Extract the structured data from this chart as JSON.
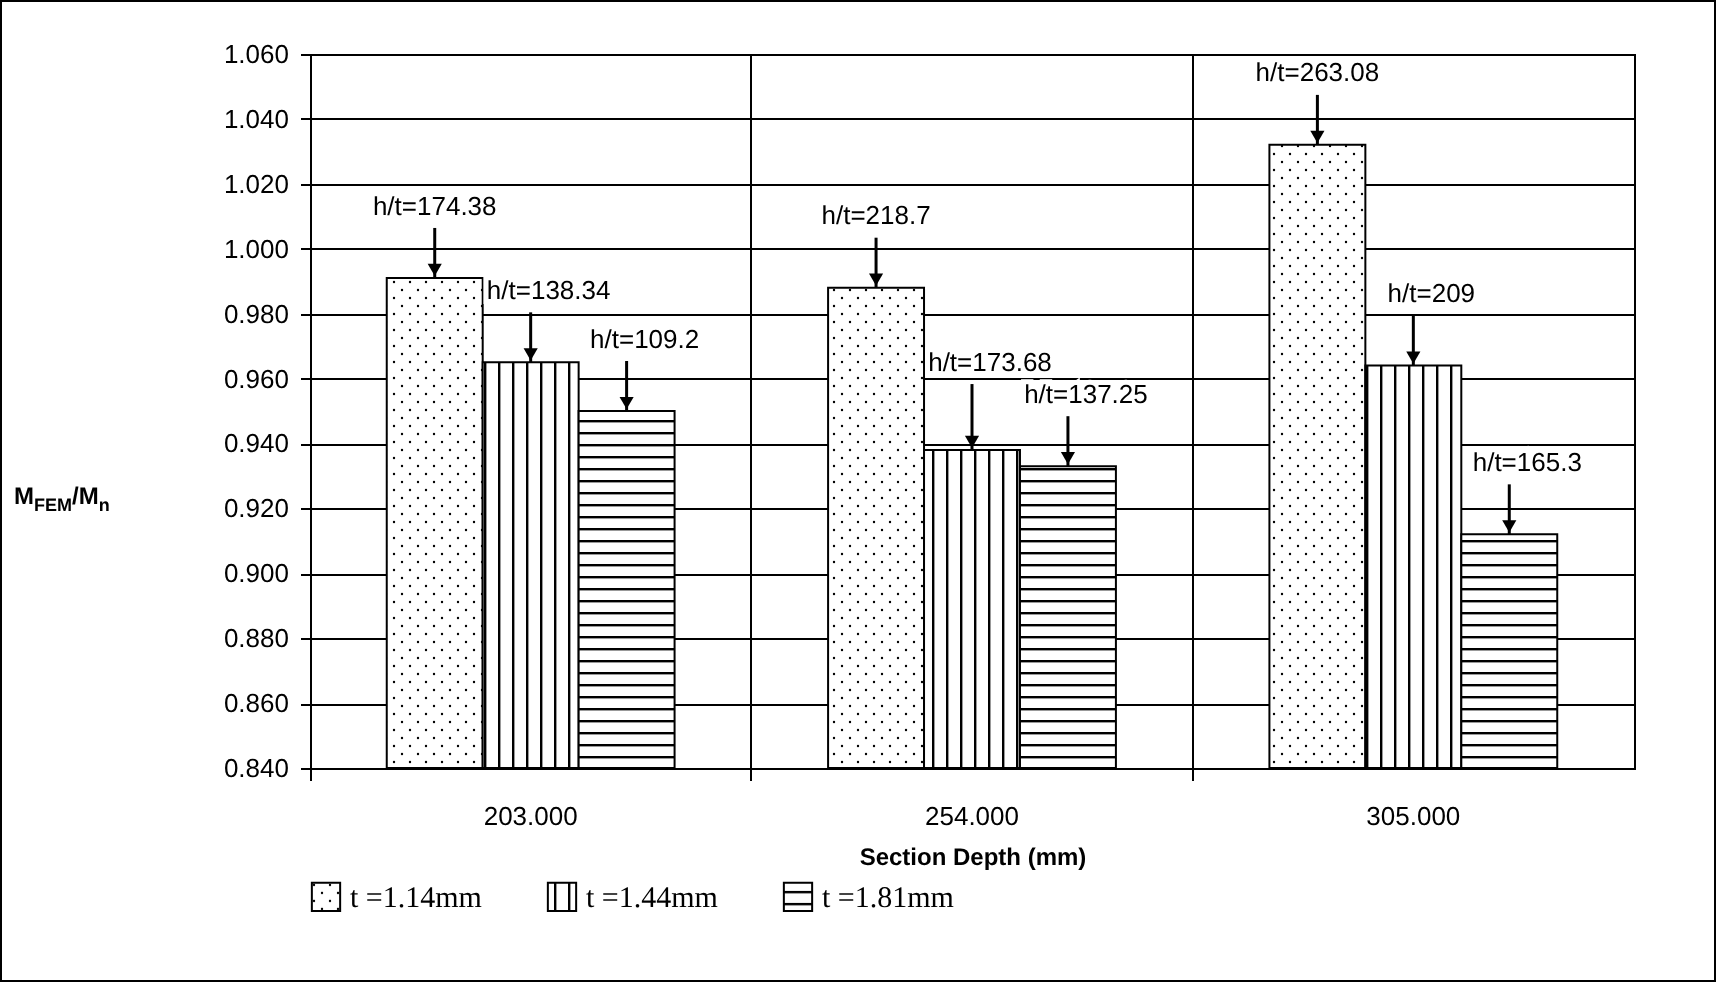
{
  "chart_data": {
    "type": "bar",
    "xlabel": "Section Depth (mm)",
    "ylabel": "M$_{FEM}$/M$_{n}$",
    "categories": [
      "203.000",
      "254.000",
      "305.000"
    ],
    "series": [
      {
        "name": "t =1.14mm",
        "color": "#000000",
        "values": [
          0.991,
          0.988,
          1.032
        ]
      },
      {
        "name": "t =1.44mm",
        "color": "#000000",
        "values": [
          0.965,
          0.938,
          0.964
        ]
      },
      {
        "name": "t =1.81mm",
        "color": "#000000",
        "values": [
          0.95,
          0.933,
          0.912
        ]
      }
    ],
    "annotations": [
      {
        "text": "h/t=174.38",
        "y": 0.991
      },
      {
        "text": "h/t=138.34",
        "y": 0.965
      },
      {
        "text": "h/t=109.2",
        "y": 0.95
      },
      {
        "text": "h/t=218.7",
        "y": 0.988
      },
      {
        "text": "h/t=173.68",
        "y": 0.938
      },
      {
        "text": "h/t=137.25",
        "y": 0.933
      },
      {
        "text": "h/t=263.08",
        "y": 1.032
      },
      {
        "text": "h/t=209",
        "y": 0.964
      },
      {
        "text": "h/t=165.3",
        "y": 0.912
      }
    ],
    "ylim": [
      0.84,
      1.06
    ],
    "yticks": [
      {
        "value": 0.84,
        "label": "0.840"
      },
      {
        "value": 0.86,
        "label": "0.860"
      },
      {
        "value": 0.88,
        "label": "0.880"
      },
      {
        "value": 0.9,
        "label": "0.900"
      },
      {
        "value": 0.92,
        "label": "0.920"
      },
      {
        "value": 0.94,
        "label": "0.940"
      },
      {
        "value": 0.96,
        "label": "0.960"
      },
      {
        "value": 0.98,
        "label": "0.980"
      },
      {
        "value": 1.0,
        "label": "1.000"
      },
      {
        "value": 1.02,
        "label": "1.020"
      },
      {
        "value": 1.04,
        "label": "1.040"
      },
      {
        "value": 1.06,
        "label": "1.060"
      }
    ],
    "grid": true,
    "legend": "bottom"
  }
}
